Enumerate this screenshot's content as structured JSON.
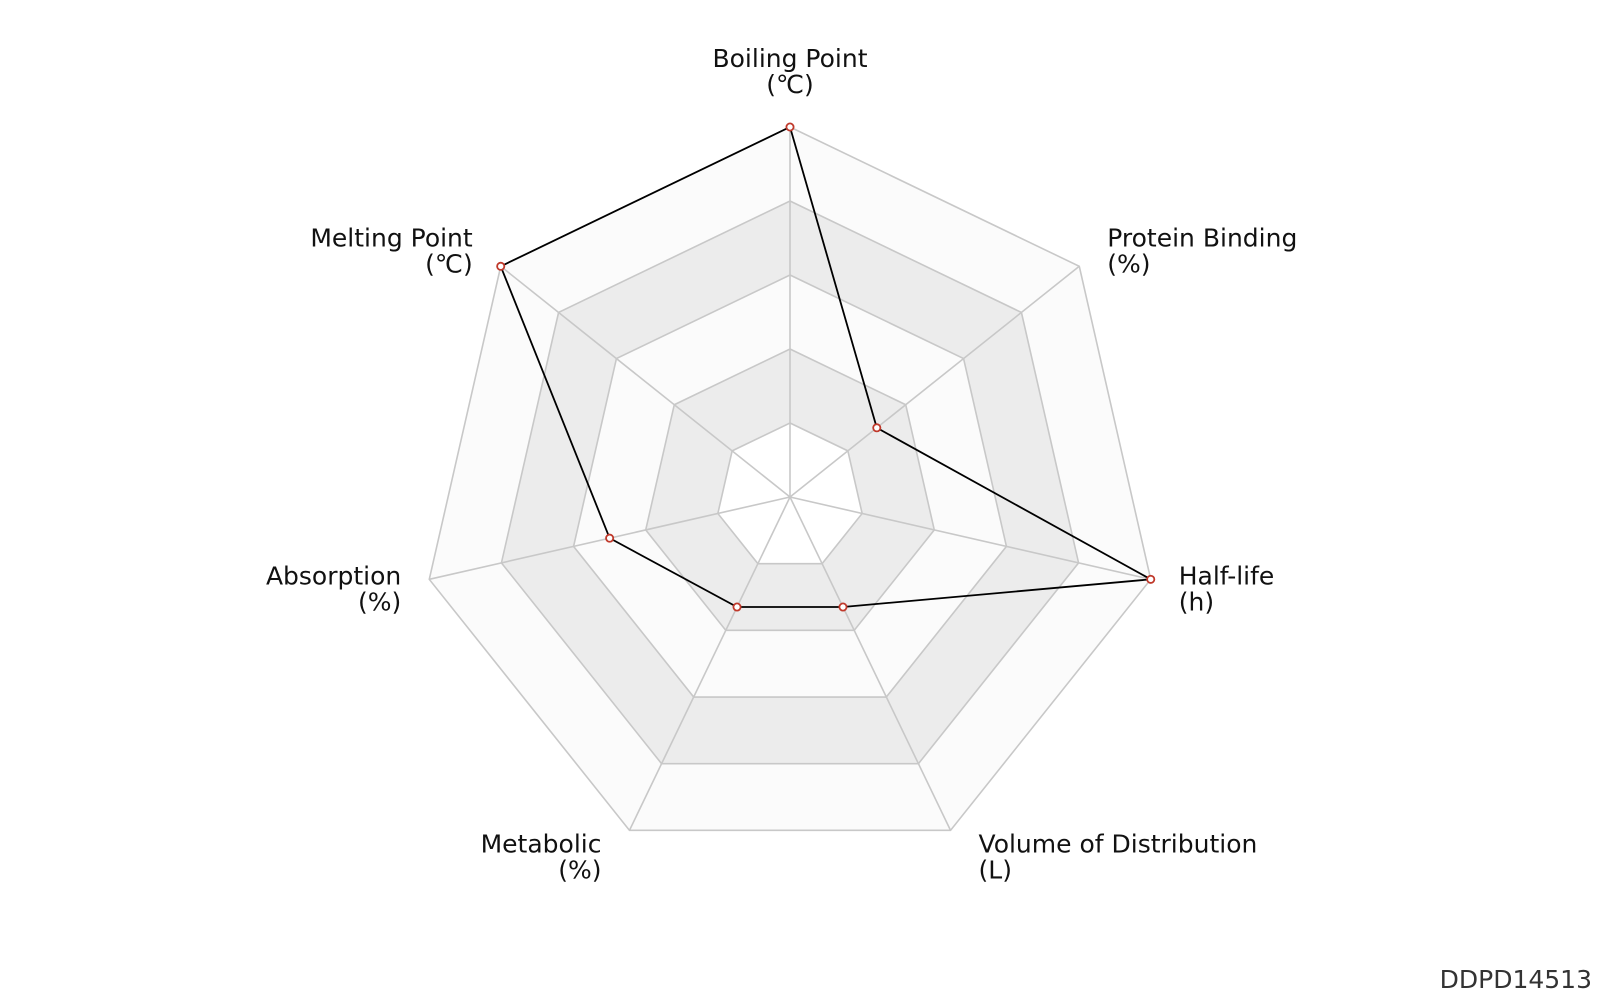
{
  "chart_data": {
    "type": "radar",
    "axes": [
      {
        "label": "Boiling Point",
        "unit": "(℃)"
      },
      {
        "label": "Protein Binding",
        "unit": "(%)"
      },
      {
        "label": "Half-life",
        "unit": "(h)"
      },
      {
        "label": "Volume of Distribution",
        "unit": "(L)"
      },
      {
        "label": "Metabolic",
        "unit": "(%)"
      },
      {
        "label": "Absorption",
        "unit": "(%)"
      },
      {
        "label": "Melting Point",
        "unit": "(℃)"
      }
    ],
    "scale": {
      "min": 0,
      "max": 1,
      "rings": 5
    },
    "series": [
      {
        "values": [
          1.0,
          0.3,
          1.0,
          0.33,
          0.33,
          0.5,
          1.0
        ],
        "line_color": "#000000",
        "marker_color": "#c0392b"
      }
    ],
    "colors": {
      "grid": "#c8c8c8",
      "band_shaded": "#ececec",
      "band_light": "#fbfbfb"
    }
  },
  "watermark": "DDPD14513"
}
